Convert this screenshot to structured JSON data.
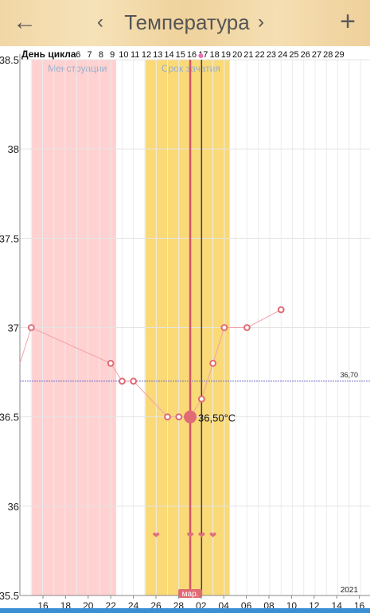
{
  "header": {
    "back_icon": "arrow-left-icon",
    "prev_icon": "chevron-left-icon",
    "title": "Температура",
    "next_icon": "chevron-right-icon",
    "add_icon": "plus-icon"
  },
  "chart_data": {
    "type": "line",
    "cycle_day_label": "День цикла",
    "cycle_days": [
      "6",
      "7",
      "8",
      "9",
      "10",
      "11",
      "12",
      "13",
      "14",
      "15",
      "16",
      "17",
      "18",
      "19",
      "20",
      "21",
      "22",
      "23",
      "24",
      "25",
      "26",
      "27",
      "28",
      "29"
    ],
    "y_ticks": [
      "38.5",
      "38",
      "37.5",
      "37",
      "36.5",
      "36",
      "35.5"
    ],
    "ylim": [
      35.5,
      38.5
    ],
    "x_ticks": [
      "16",
      "18",
      "20",
      "22",
      "24",
      "26",
      "28",
      "02",
      "04",
      "06",
      "08",
      "10",
      "12",
      "14",
      "16"
    ],
    "month_marker": "мар.",
    "year_label": "2021",
    "zones": [
      {
        "label": "Менструации",
        "from_day": 1,
        "to_day": 8,
        "color": "#ffd1d1",
        "label_color": "#9ab0cc"
      },
      {
        "label": "Срок зачатия",
        "from_day": 11,
        "to_day": 18,
        "color": "#fad977",
        "label_color": "#9ab0cc"
      }
    ],
    "coverline": {
      "value": 36.7,
      "label": "36,70",
      "color": "#6a6ad0"
    },
    "series": [
      {
        "values": [
          {
            "day": 0,
            "t": 36.8
          },
          {
            "day": 1,
            "t": 37.0
          },
          {
            "day": 8,
            "t": 36.8
          },
          {
            "day": 9,
            "t": 36.7
          },
          {
            "day": 10,
            "t": 36.7
          },
          {
            "day": 13,
            "t": 36.5
          },
          {
            "day": 14,
            "t": 36.5
          },
          {
            "day": 15,
            "t": 36.5
          },
          {
            "day": 16,
            "t": 36.6
          },
          {
            "day": 17,
            "t": 36.8
          },
          {
            "day": 18,
            "t": 37.0
          },
          {
            "day": 20,
            "t": 37.0
          },
          {
            "day": 23,
            "t": 37.1
          }
        ],
        "color": "#e06b74"
      }
    ],
    "selected": {
      "day": 15,
      "t": 36.5,
      "label": "36,50°C"
    },
    "today_day": 16,
    "hearts_days": [
      12,
      15,
      16,
      17
    ],
    "grid": true
  }
}
